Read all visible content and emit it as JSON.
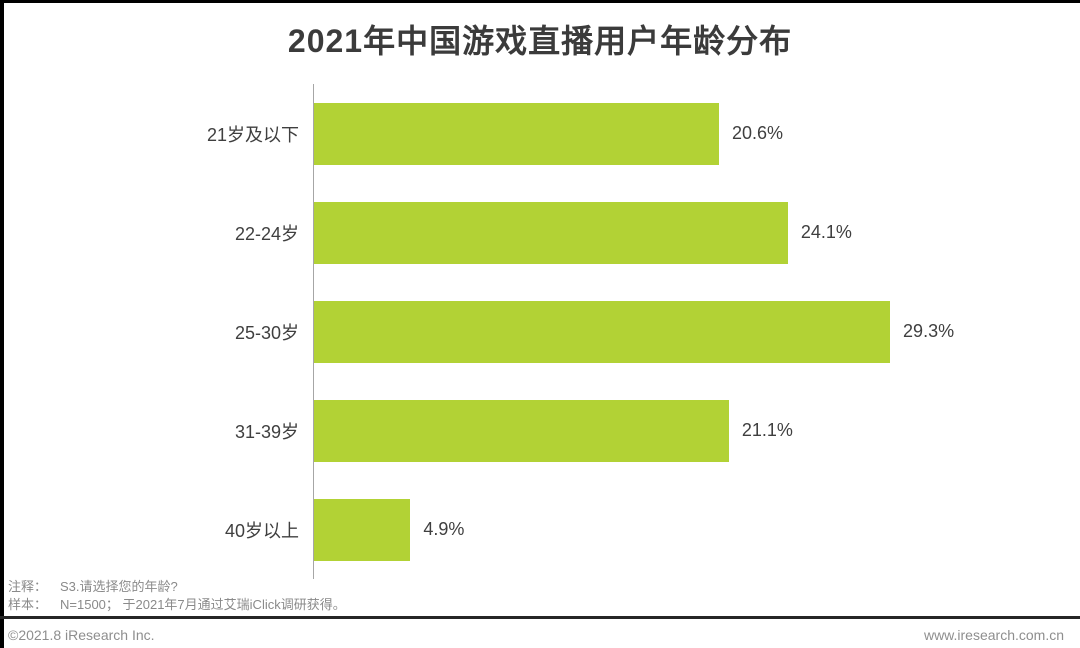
{
  "page": {
    "title": "2021年中国游戏直播用户年龄分布"
  },
  "chart_data": {
    "type": "bar",
    "orientation": "horizontal",
    "title": "2021年中国游戏直播用户年龄分布",
    "categories": [
      "21岁及以下",
      "22-24岁",
      "25-30岁",
      "31-39岁",
      "40岁以上"
    ],
    "values": [
      20.6,
      24.1,
      29.3,
      21.1,
      4.9
    ],
    "value_labels": [
      "20.6%",
      "24.1%",
      "29.3%",
      "21.1%",
      "4.9%"
    ],
    "xlabel": "",
    "ylabel": "",
    "xlim": [
      0,
      30
    ],
    "grid": false,
    "legend": false,
    "bar_color": "#b2d235",
    "axis_line_color": "#a6a6a6"
  },
  "footer": {
    "note_label": "注释：",
    "note_text": "S3.请选择您的年龄?",
    "sample_label": "样本：",
    "sample_text": "N=1500； 于2021年7月通过艾瑞iClick调研获得。",
    "copyright": "©2021.8 iResearch Inc.",
    "website": "www.iresearch.com.cn"
  }
}
